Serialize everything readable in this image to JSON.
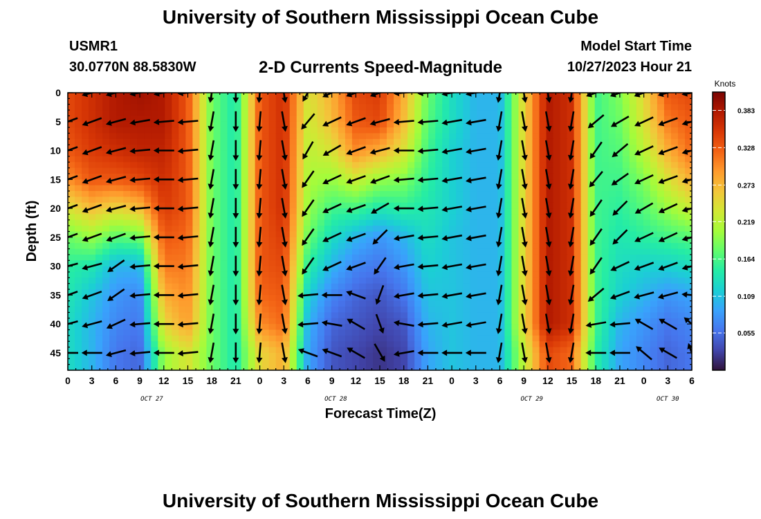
{
  "header": {
    "title": "University of Southern Mississippi Ocean Cube",
    "station": "USMR1",
    "coords": "30.0770N  88.5830W",
    "subtitle": "2-D Currents Speed-Magnitude",
    "model_start_label": "Model Start Time",
    "model_start_value": "10/27/2023 Hour 21"
  },
  "footer": {
    "title": "University of Southern Mississippi Ocean Cube"
  },
  "colors": {
    "colormap": [
      "#30123b",
      "#4145ab",
      "#4675ed",
      "#39a2fc",
      "#1bcfd4",
      "#24eca6",
      "#61fc6c",
      "#a4fc3b",
      "#d1e834",
      "#f3c63a",
      "#fe9b2d",
      "#f36315",
      "#d93806",
      "#b11901",
      "#7a0402"
    ],
    "arrow": "#000000"
  },
  "chart_data": {
    "type": "heatmap",
    "xlabel": "Forecast Time(Z)",
    "ylabel": "Depth (ft)",
    "x_ticks": [
      "0",
      "3",
      "6",
      "9",
      "12",
      "15",
      "18",
      "21",
      "0",
      "3",
      "6",
      "9",
      "12",
      "15",
      "18",
      "21",
      "0",
      "3",
      "6",
      "9",
      "12",
      "15",
      "18",
      "21",
      "0",
      "3",
      "6"
    ],
    "date_labels": [
      "OCT 27",
      "OCT 28",
      "OCT 29",
      "OCT 30"
    ],
    "y_ticks": [
      "0",
      "5",
      "10",
      "15",
      "20",
      "25",
      "30",
      "35",
      "40",
      "45"
    ],
    "ylim": [
      48,
      0
    ],
    "xlim_hours": [
      0,
      78
    ],
    "colorbar": {
      "title": "Knots",
      "tick_labels": [
        "0.383",
        "0.328",
        "0.273",
        "0.219",
        "0.164",
        "0.109",
        "0.055"
      ],
      "tick_values": [
        0.383,
        0.328,
        0.273,
        0.219,
        0.164,
        0.109,
        0.055
      ],
      "range": [
        0.0,
        0.41
      ]
    },
    "depth_levels": [
      0,
      5,
      10,
      15,
      20,
      25,
      30,
      35,
      40,
      45
    ],
    "x_hours": [
      0,
      3,
      6,
      9,
      12,
      15,
      18,
      21,
      24,
      27,
      30,
      33,
      36,
      39,
      42,
      45,
      48,
      51,
      54,
      57,
      60,
      63,
      66,
      69,
      72,
      75,
      78
    ],
    "speed_knots": [
      [
        0.34,
        0.36,
        0.38,
        0.39,
        0.38,
        0.33,
        0.18,
        0.14,
        0.33,
        0.36,
        0.24,
        0.28,
        0.34,
        0.35,
        0.28,
        0.18,
        0.13,
        0.1,
        0.1,
        0.25,
        0.38,
        0.36,
        0.16,
        0.19,
        0.25,
        0.33,
        0.34
      ],
      [
        0.34,
        0.36,
        0.38,
        0.38,
        0.38,
        0.33,
        0.18,
        0.14,
        0.33,
        0.36,
        0.23,
        0.27,
        0.33,
        0.34,
        0.27,
        0.17,
        0.13,
        0.1,
        0.1,
        0.25,
        0.38,
        0.36,
        0.16,
        0.18,
        0.24,
        0.31,
        0.33
      ],
      [
        0.33,
        0.35,
        0.36,
        0.37,
        0.37,
        0.33,
        0.18,
        0.14,
        0.33,
        0.36,
        0.22,
        0.24,
        0.3,
        0.28,
        0.24,
        0.16,
        0.12,
        0.1,
        0.1,
        0.25,
        0.38,
        0.36,
        0.16,
        0.17,
        0.22,
        0.28,
        0.32
      ],
      [
        0.3,
        0.33,
        0.33,
        0.34,
        0.36,
        0.33,
        0.18,
        0.14,
        0.33,
        0.36,
        0.21,
        0.2,
        0.23,
        0.2,
        0.19,
        0.15,
        0.12,
        0.1,
        0.1,
        0.25,
        0.38,
        0.36,
        0.16,
        0.16,
        0.19,
        0.24,
        0.28
      ],
      [
        0.24,
        0.27,
        0.25,
        0.27,
        0.35,
        0.33,
        0.18,
        0.14,
        0.33,
        0.36,
        0.2,
        0.16,
        0.16,
        0.14,
        0.15,
        0.14,
        0.12,
        0.1,
        0.1,
        0.25,
        0.38,
        0.36,
        0.16,
        0.15,
        0.17,
        0.2,
        0.23
      ],
      [
        0.18,
        0.2,
        0.17,
        0.18,
        0.33,
        0.32,
        0.18,
        0.14,
        0.33,
        0.35,
        0.18,
        0.13,
        0.1,
        0.08,
        0.1,
        0.13,
        0.11,
        0.1,
        0.1,
        0.25,
        0.38,
        0.36,
        0.16,
        0.14,
        0.15,
        0.16,
        0.17
      ],
      [
        0.15,
        0.14,
        0.1,
        0.1,
        0.31,
        0.31,
        0.18,
        0.14,
        0.33,
        0.34,
        0.15,
        0.1,
        0.07,
        0.06,
        0.08,
        0.12,
        0.11,
        0.1,
        0.1,
        0.25,
        0.38,
        0.36,
        0.16,
        0.13,
        0.12,
        0.12,
        0.13
      ],
      [
        0.14,
        0.11,
        0.08,
        0.07,
        0.28,
        0.3,
        0.18,
        0.14,
        0.32,
        0.33,
        0.12,
        0.07,
        0.05,
        0.04,
        0.06,
        0.11,
        0.11,
        0.1,
        0.1,
        0.25,
        0.38,
        0.36,
        0.16,
        0.12,
        0.1,
        0.08,
        0.09
      ],
      [
        0.13,
        0.1,
        0.07,
        0.06,
        0.25,
        0.29,
        0.18,
        0.14,
        0.3,
        0.32,
        0.1,
        0.05,
        0.04,
        0.03,
        0.04,
        0.1,
        0.11,
        0.1,
        0.1,
        0.25,
        0.38,
        0.36,
        0.16,
        0.1,
        0.08,
        0.06,
        0.07
      ],
      [
        0.13,
        0.1,
        0.06,
        0.05,
        0.2,
        0.24,
        0.18,
        0.14,
        0.25,
        0.28,
        0.09,
        0.04,
        0.03,
        0.02,
        0.03,
        0.09,
        0.11,
        0.1,
        0.1,
        0.22,
        0.34,
        0.32,
        0.15,
        0.09,
        0.07,
        0.05,
        0.06
      ]
    ],
    "current_direction_deg": [
      [
        255,
        255,
        255,
        260,
        260,
        265,
        190,
        180,
        185,
        170,
        210,
        245,
        250,
        250,
        265,
        265,
        260,
        260,
        190,
        170,
        170,
        190,
        250,
        250,
        250,
        255,
        260
      ],
      [
        250,
        250,
        255,
        260,
        265,
        265,
        190,
        180,
        185,
        170,
        220,
        245,
        250,
        255,
        265,
        265,
        260,
        260,
        190,
        170,
        170,
        190,
        230,
        240,
        245,
        250,
        255
      ],
      [
        250,
        250,
        255,
        265,
        270,
        265,
        190,
        180,
        185,
        170,
        210,
        240,
        250,
        255,
        270,
        265,
        260,
        260,
        190,
        170,
        170,
        190,
        215,
        230,
        245,
        250,
        255
      ],
      [
        250,
        250,
        255,
        265,
        270,
        265,
        190,
        180,
        185,
        170,
        215,
        245,
        250,
        250,
        265,
        265,
        260,
        260,
        190,
        170,
        170,
        190,
        220,
        235,
        245,
        250,
        255
      ],
      [
        250,
        250,
        255,
        265,
        270,
        265,
        190,
        180,
        185,
        170,
        215,
        245,
        250,
        240,
        270,
        265,
        260,
        260,
        190,
        170,
        170,
        190,
        215,
        225,
        240,
        245,
        255
      ],
      [
        250,
        250,
        250,
        265,
        270,
        265,
        190,
        180,
        185,
        170,
        215,
        245,
        250,
        225,
        260,
        265,
        260,
        260,
        190,
        170,
        170,
        190,
        215,
        225,
        245,
        245,
        255
      ],
      [
        255,
        255,
        235,
        265,
        270,
        265,
        190,
        180,
        185,
        170,
        215,
        245,
        250,
        215,
        260,
        265,
        260,
        260,
        190,
        170,
        170,
        190,
        215,
        245,
        250,
        250,
        255
      ],
      [
        250,
        250,
        235,
        265,
        270,
        265,
        190,
        180,
        185,
        170,
        265,
        270,
        290,
        200,
        260,
        265,
        260,
        260,
        190,
        170,
        170,
        190,
        230,
        250,
        255,
        255,
        275
      ],
      [
        255,
        255,
        245,
        265,
        270,
        265,
        190,
        180,
        185,
        170,
        265,
        280,
        300,
        160,
        280,
        265,
        260,
        260,
        190,
        170,
        170,
        190,
        260,
        265,
        300,
        300,
        310
      ],
      [
        270,
        270,
        255,
        265,
        270,
        265,
        190,
        180,
        185,
        170,
        290,
        290,
        300,
        150,
        260,
        270,
        270,
        270,
        190,
        170,
        170,
        190,
        270,
        270,
        310,
        300,
        340
      ]
    ]
  }
}
